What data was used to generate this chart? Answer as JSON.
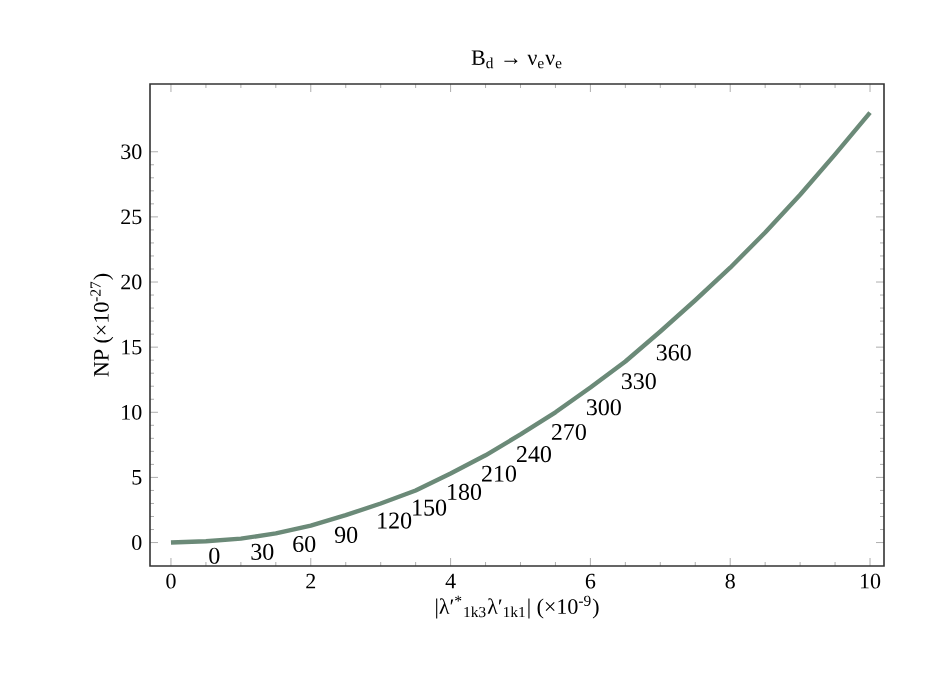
{
  "chart_data": {
    "type": "line",
    "title": "B$_{d}$ → ν$_{e}$ν$_{e}$",
    "xlabel": "|λ′$^{*}$$_{1k3}$λ′$_{1k1}$| (×10$^{-9}$)",
    "ylabel": "NP (×10$^{-27}$)",
    "x": [
      0,
      0.5,
      1,
      1.5,
      2,
      2.5,
      3,
      3.5,
      4,
      4.5,
      5,
      5.5,
      6,
      6.5,
      7,
      7.5,
      8,
      8.5,
      9,
      9.5,
      10
    ],
    "series": [
      {
        "color": "#6b8a78",
        "values": [
          0,
          0.1,
          0.3,
          0.7,
          1.3,
          2.1,
          3.0,
          4.0,
          5.3,
          6.7,
          8.3,
          10.0,
          11.9,
          13.9,
          16.2,
          18.6,
          21.1,
          23.8,
          26.7,
          29.8,
          33.0
        ]
      }
    ],
    "xlim": [
      -0.3,
      10.2
    ],
    "ylim": [
      -1.8,
      35.2
    ],
    "xticks": [
      0,
      2,
      4,
      6,
      8,
      10
    ],
    "yticks": [
      0,
      5,
      10,
      15,
      20,
      25,
      30
    ],
    "grid": false,
    "marker": "none",
    "line_style": "solid",
    "annotations": [
      {
        "text": "0",
        "x": 0.5,
        "y": 0.1
      },
      {
        "text": "30",
        "x": 1.1,
        "y": 0.4
      },
      {
        "text": "60",
        "x": 1.7,
        "y": 1.0
      },
      {
        "text": "90",
        "x": 2.3,
        "y": 1.7
      },
      {
        "text": "120",
        "x": 2.9,
        "y": 2.8
      },
      {
        "text": "150",
        "x": 3.4,
        "y": 3.8
      },
      {
        "text": "180",
        "x": 3.9,
        "y": 5.0
      },
      {
        "text": "210",
        "x": 4.4,
        "y": 6.4
      },
      {
        "text": "240",
        "x": 4.9,
        "y": 7.9
      },
      {
        "text": "270",
        "x": 5.4,
        "y": 9.6
      },
      {
        "text": "300",
        "x": 5.9,
        "y": 11.5
      },
      {
        "text": "330",
        "x": 6.4,
        "y": 13.5
      },
      {
        "text": "360",
        "x": 6.9,
        "y": 15.7
      }
    ]
  }
}
